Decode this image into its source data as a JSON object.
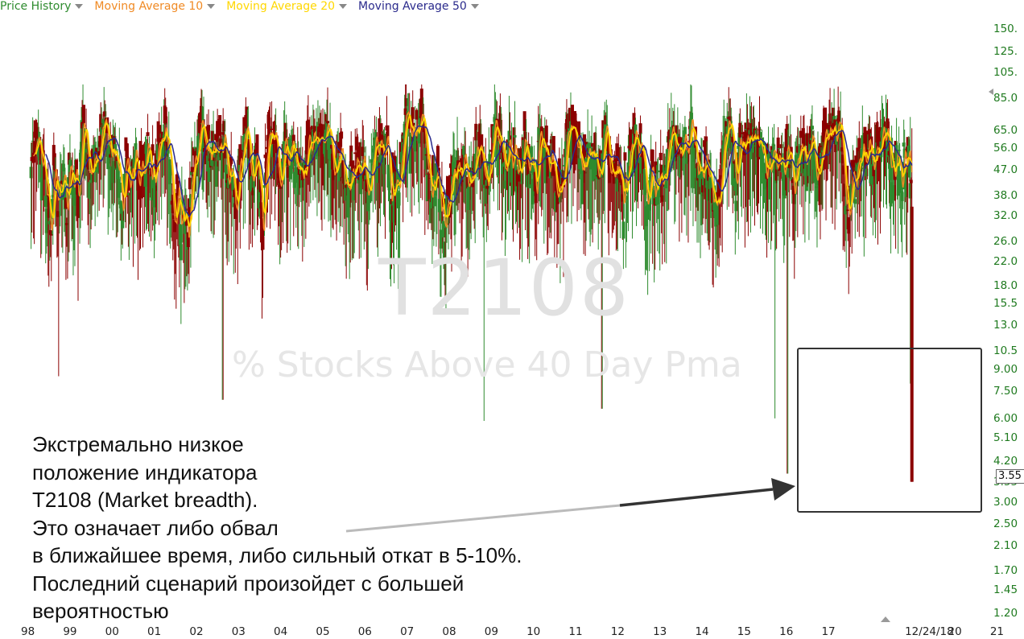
{
  "legend": {
    "items": [
      {
        "label": "Price History",
        "color": "#2e8b2e"
      },
      {
        "label": "Moving Average 10",
        "color": "#f08a24"
      },
      {
        "label": "Moving Average 20",
        "color": "#ffd700"
      },
      {
        "label": "Moving Average 50",
        "color": "#2a2a8c"
      }
    ]
  },
  "watermark": {
    "ticker": "T2108",
    "description": "% Stocks Above 40 Day Pma"
  },
  "annotation": {
    "text": "Экстремально низкое\nположение индикатора\nT2108 (Market breadth).\nЭто означает либо обвал\nв ближайшее время, либо сильный откат в 5-10%.\nПоследний сценарий произойдет с большей\nвероятностью"
  },
  "last_price": "3.55",
  "colors": {
    "up": "#2e8b2e",
    "down": "#8b0000",
    "ma10": "#f08a24",
    "ma20": "#ffd700",
    "ma50": "#2a2a8c",
    "axis_text": "#1f7a1f"
  },
  "chart_data": {
    "type": "candlestick",
    "title": "T2108",
    "subtitle": "% Stocks Above 40 Day Pma",
    "y_scale": "log",
    "ylim": [
      1.15,
      165
    ],
    "y_ticks": [
      "150.",
      "125.",
      "105.",
      "85.0",
      "65.0",
      "56.0",
      "47.0",
      "38.0",
      "32.0",
      "26.0",
      "22.0",
      "18.0",
      "15.5",
      "13.0",
      "10.5",
      "9.00",
      "7.50",
      "6.00",
      "5.10",
      "4.20",
      "3.55",
      "3.00",
      "2.50",
      "2.10",
      "1.70",
      "1.45",
      "1.20"
    ],
    "x_ticks": [
      "98",
      "99",
      "00",
      "01",
      "02",
      "03",
      "04",
      "05",
      "06",
      "07",
      "08",
      "09",
      "10",
      "11",
      "12",
      "13",
      "14",
      "15",
      "16",
      "17",
      "12/24/18",
      "20",
      "21"
    ],
    "x_range": [
      1998.0,
      2021.5
    ],
    "last_value": 3.55,
    "series": [
      {
        "name": "Price History",
        "type": "candles"
      },
      {
        "name": "Moving Average 10",
        "type": "line"
      },
      {
        "name": "Moving Average 20",
        "type": "line"
      },
      {
        "name": "Moving Average 50",
        "type": "line"
      }
    ],
    "notable_lows": [
      {
        "date": 1998.7,
        "low": 8.5
      },
      {
        "date": 2002.6,
        "low": 7.0
      },
      {
        "date": 2008.8,
        "low": 5.6
      },
      {
        "date": 2011.6,
        "low": 6.5
      },
      {
        "date": 2015.7,
        "low": 6.0
      },
      {
        "date": 2016.0,
        "low": 3.8
      },
      {
        "date": 2018.98,
        "low": 3.55
      }
    ]
  }
}
